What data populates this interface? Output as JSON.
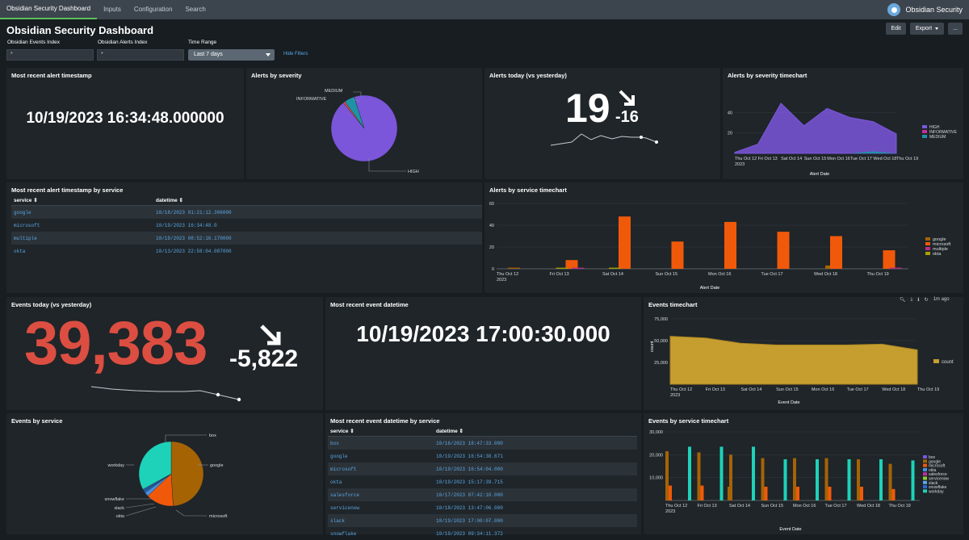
{
  "nav": {
    "tabs": [
      {
        "label": "Obsidian Security Dashboard"
      },
      {
        "label": "Inputs"
      },
      {
        "label": "Configuration"
      },
      {
        "label": "Search"
      }
    ],
    "brand": "Obsidian Security"
  },
  "page": {
    "title": "Obsidian Security Dashboard",
    "edit": "Edit",
    "export": "Export",
    "more": "..."
  },
  "filters": {
    "events_index_label": "Obsidian Events Index",
    "events_index_value": "*",
    "alerts_index_label": "Obsidian Alerts Index",
    "alerts_index_value": "*",
    "time_label": "Time Range",
    "time_value": "Last 7 days",
    "hide": "Hide Filters"
  },
  "colors": {
    "high": "#7b56db",
    "informative": "#dc4e41",
    "medium": "#1e93a6",
    "orange": "#f1590a",
    "box": "#a66304",
    "google": "#a66304",
    "teal": "#1ed2b9",
    "count": "#c69e30",
    "red": "#dc4e41"
  },
  "panels": {
    "recent_alert": {
      "title": "Most recent alert timestamp",
      "value": "10/19/2023 16:34:48.000000"
    },
    "alerts_sev": {
      "title": "Alerts by severity",
      "labels": {
        "medium": "MEDIUM",
        "informative": "INFORMATIVE",
        "high": "HIGH"
      }
    },
    "alerts_today": {
      "title": "Alerts today (vs yesterday)",
      "value": "19",
      "delta": "-16"
    },
    "alerts_sev_tc": {
      "title": "Alerts by severity timechart",
      "xlabel": "Alert Date",
      "legend": [
        "HIGH",
        "INFORMATIVE",
        "MEDIUM"
      ]
    },
    "alert_ts_service": {
      "title": "Most recent alert timestamp by service",
      "col1": "service",
      "col2": "datetime",
      "rows": [
        {
          "service": "google",
          "datetime": "10/18/2023 01:21:12.306000"
        },
        {
          "service": "microsoft",
          "datetime": "10/19/2023 16:34:48.0"
        },
        {
          "service": "multiple",
          "datetime": "10/19/2023 08:52:16.170000"
        },
        {
          "service": "okta",
          "datetime": "10/13/2023 22:58:04.087000"
        }
      ]
    },
    "alerts_service_tc": {
      "title": "Alerts by service timechart",
      "xlabel": "Alert Date",
      "legend": [
        "google",
        "microsoft",
        "multiple",
        "okta"
      ]
    },
    "events_today": {
      "title": "Events today (vs yesterday)",
      "value": "39,383",
      "delta": "-5,822"
    },
    "recent_event": {
      "title": "Most recent event datetime",
      "value": "10/19/2023 17:00:30.000"
    },
    "events_tc": {
      "title": "Events timechart",
      "ago": "1m ago",
      "xlabel": "Event Date",
      "ylabel": "count",
      "legend": [
        "count"
      ]
    },
    "events_service": {
      "title": "Events by service",
      "labels": {
        "box": "box",
        "google": "google",
        "microsoft": "microsoft",
        "okta": "okta",
        "slack": "slack",
        "snowflake": "snowflake",
        "workday": "workday"
      }
    },
    "event_ts_service": {
      "title": "Most recent event datetime by service",
      "col1": "service",
      "col2": "datetime",
      "rows": [
        {
          "service": "box",
          "datetime": "10/16/2023 18:47:33.000"
        },
        {
          "service": "google",
          "datetime": "10/19/2023 16:54:38.671"
        },
        {
          "service": "microsoft",
          "datetime": "10/19/2023 16:54:04.000"
        },
        {
          "service": "okta",
          "datetime": "10/19/2023 15:17:39.715"
        },
        {
          "service": "salesforce",
          "datetime": "10/17/2023 07:42:10.000"
        },
        {
          "service": "servicenow",
          "datetime": "10/18/2023 13:47:06.000"
        },
        {
          "service": "slack",
          "datetime": "10/19/2023 17:00:07.000"
        },
        {
          "service": "snowflake",
          "datetime": "10/19/2023 09:34:11.372"
        }
      ]
    },
    "events_service_tc": {
      "title": "Events by service timechart",
      "xlabel": "Event Date",
      "legend": [
        "box",
        "google",
        "microsoft",
        "okta",
        "salesforce",
        "servicenow",
        "slack",
        "snowflake",
        "workday"
      ]
    }
  },
  "chart_data": [
    {
      "id": "alerts_severity",
      "type": "pie",
      "labels": [
        "HIGH",
        "INFORMATIVE",
        "MEDIUM"
      ],
      "values": [
        94,
        1,
        5
      ]
    },
    {
      "id": "alerts_severity_tc",
      "type": "area",
      "x": [
        "Thu Oct 12 2023",
        "Fri Oct 13",
        "Sat Oct 14",
        "Sun Oct 15",
        "Mon Oct 16",
        "Tue Oct 17",
        "Wed Oct 18",
        "Thu Oct 19"
      ],
      "series": [
        {
          "name": "HIGH",
          "values": [
            1,
            9,
            49,
            27,
            44,
            35,
            31,
            19
          ]
        },
        {
          "name": "INFORMATIVE",
          "values": [
            0,
            0,
            0,
            0,
            0,
            0,
            1,
            0
          ]
        },
        {
          "name": "MEDIUM",
          "values": [
            0,
            0,
            0,
            0,
            0,
            1,
            2,
            0
          ]
        }
      ],
      "yticks": [
        20,
        40
      ],
      "ylim": [
        0,
        60
      ],
      "xlabel": "Alert Date"
    },
    {
      "id": "alerts_service_tc",
      "type": "bar",
      "x": [
        "Thu Oct 12 2023",
        "Fri Oct 13",
        "Sat Oct 14",
        "Sun Oct 15",
        "Mon Oct 16",
        "Tue Oct 17",
        "Wed Oct 18",
        "Thu Oct 19"
      ],
      "series": [
        {
          "name": "google",
          "values": [
            1,
            0,
            0,
            0,
            0,
            0,
            3,
            0
          ]
        },
        {
          "name": "microsoft",
          "values": [
            0,
            8,
            48,
            25,
            43,
            34,
            30,
            17
          ]
        },
        {
          "name": "multiple",
          "values": [
            0,
            1,
            0,
            0,
            0,
            0,
            0,
            1
          ]
        },
        {
          "name": "okta",
          "values": [
            0,
            1,
            1,
            0,
            0,
            0,
            0,
            0
          ]
        }
      ],
      "yticks": [
        0,
        20,
        40,
        60
      ],
      "ylim": [
        0,
        60
      ],
      "xlabel": "Alert Date"
    },
    {
      "id": "events_tc",
      "type": "area",
      "x": [
        "Thu Oct 12 2023",
        "Fri Oct 13",
        "Sat Oct 14",
        "Sun Oct 15",
        "Mon Oct 16",
        "Tue Oct 17",
        "Wed Oct 18",
        "Thu Oct 19"
      ],
      "series": [
        {
          "name": "count",
          "values": [
            55000,
            53000,
            47000,
            45000,
            45000,
            45000,
            46000,
            39383
          ]
        }
      ],
      "yticks": [
        25000,
        50000,
        75000
      ],
      "ylim": [
        0,
        75000
      ],
      "xlabel": "Event Date",
      "ylabel": "count"
    },
    {
      "id": "events_service",
      "type": "pie",
      "labels": [
        "google",
        "microsoft",
        "okta",
        "slack",
        "snowflake",
        "workday"
      ],
      "values": [
        49,
        14,
        2,
        1,
        1,
        33
      ]
    },
    {
      "id": "events_service_tc",
      "type": "bar",
      "x": [
        "Thu Oct 12 2023",
        "Fri Oct 13",
        "Sat Oct 14",
        "Sun Oct 15",
        "Mon Oct 16",
        "Tue Oct 17",
        "Wed Oct 18",
        "Thu Oct 19"
      ],
      "series": [
        {
          "name": "google",
          "values": [
            21500,
            21000,
            20000,
            18500,
            18500,
            18500,
            18000,
            16000
          ]
        },
        {
          "name": "microsoft",
          "values": [
            6500,
            6500,
            0,
            6000,
            6000,
            6000,
            6000,
            5000
          ]
        },
        {
          "name": "workday",
          "values": [
            23500,
            23500,
            23500,
            18000,
            18000,
            18000,
            18000,
            17500
          ]
        },
        {
          "name": "box",
          "values": [
            0,
            0,
            6000,
            0,
            0,
            0,
            0,
            0
          ]
        }
      ],
      "yticks": [
        10000,
        20000,
        30000
      ],
      "ylim": [
        0,
        30000
      ],
      "xlabel": "Event Date"
    }
  ]
}
